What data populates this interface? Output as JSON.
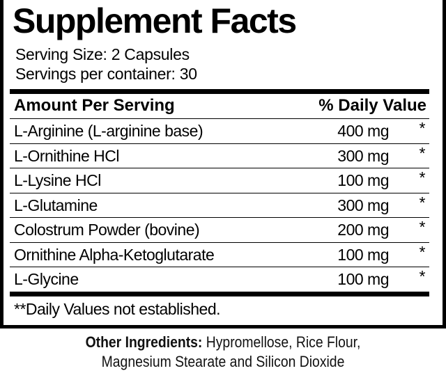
{
  "title": "Supplement Facts",
  "serving_size": "Serving Size: 2 Capsules",
  "servings_per_container": "Servings per container: 30",
  "header": {
    "amount": "Amount Per Serving",
    "dv": "% Daily Value"
  },
  "rows": [
    {
      "name": "L-Arginine (L-arginine base)",
      "amount": "400 mg",
      "dv": "*"
    },
    {
      "name": "L-Ornithine HCl",
      "amount": "300 mg",
      "dv": "*"
    },
    {
      "name": "L-Lysine HCl",
      "amount": "100 mg",
      "dv": "*"
    },
    {
      "name": "L-Glutamine",
      "amount": "300 mg",
      "dv": "*"
    },
    {
      "name": "Colostrum Powder (bovine)",
      "amount": "200 mg",
      "dv": "*"
    },
    {
      "name": "Ornithine Alpha-Ketoglutarate",
      "amount": "100 mg",
      "dv": "*"
    },
    {
      "name": "L-Glycine",
      "amount": "100 mg",
      "dv": "*"
    }
  ],
  "footnote": "**Daily Values not established.",
  "other_ingredients": {
    "label": "Other Ingredients:",
    "line1": " Hypromellose, Rice Flour,",
    "line2": "Magnesium Stearate and Silicon Dioxide"
  }
}
